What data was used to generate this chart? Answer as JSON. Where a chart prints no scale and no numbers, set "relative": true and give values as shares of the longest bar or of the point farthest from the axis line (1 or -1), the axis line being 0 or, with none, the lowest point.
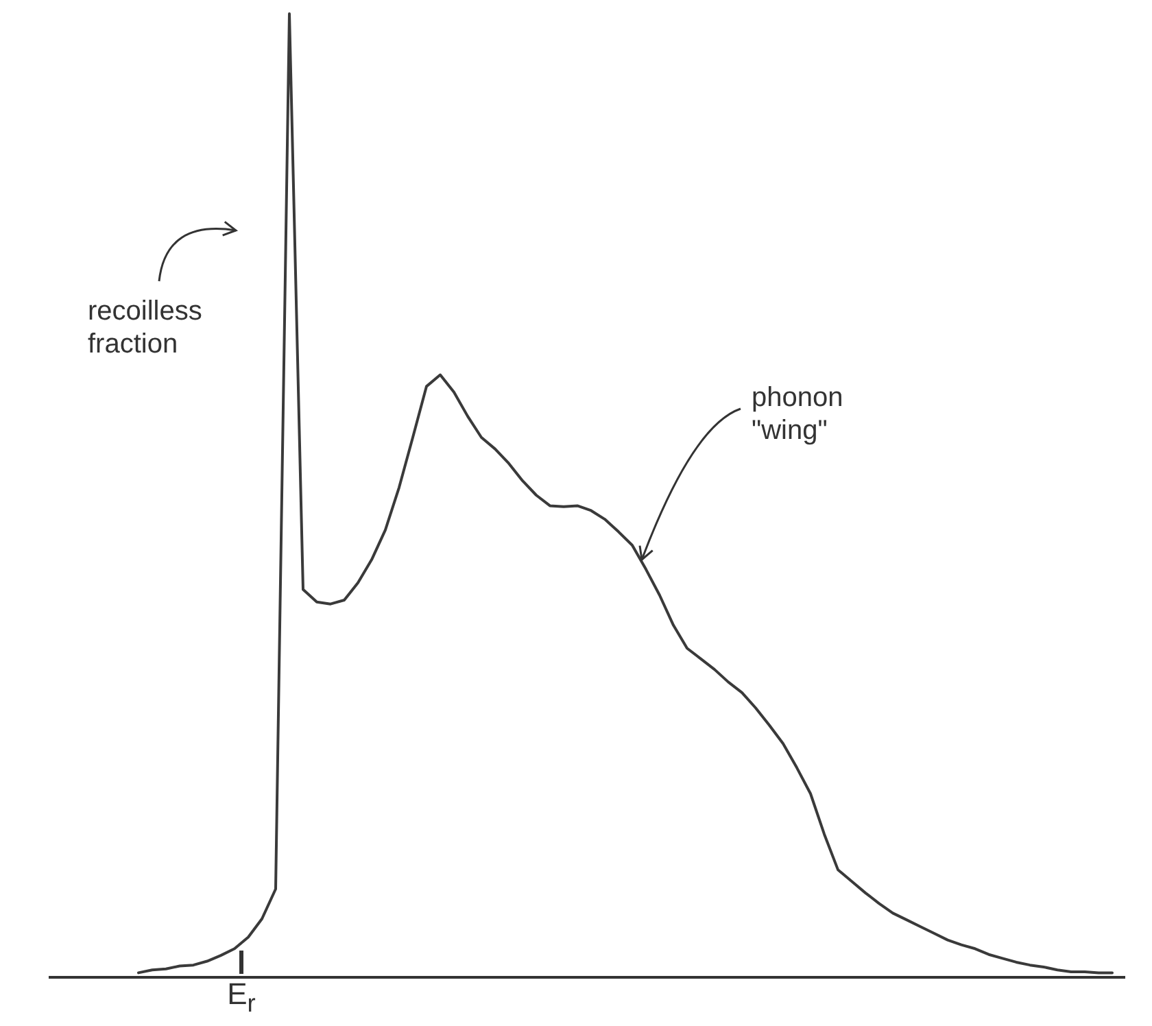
{
  "chart_data": {
    "type": "line",
    "relative": true,
    "categories": [
      null,
      null,
      null,
      null,
      null,
      null,
      null,
      null,
      null,
      null,
      null,
      null,
      null,
      null,
      null,
      null,
      null,
      null,
      null,
      null,
      null,
      null,
      null,
      null,
      null,
      null,
      null,
      null,
      null,
      null,
      null,
      null,
      null,
      null,
      null,
      null,
      null,
      null,
      null,
      null,
      null,
      null,
      null,
      null,
      null,
      null,
      null,
      null,
      null,
      null,
      null,
      null,
      null,
      null,
      null,
      null,
      null,
      null,
      null,
      null,
      null,
      null,
      null,
      null,
      null,
      null,
      null,
      null,
      null,
      null,
      null,
      null
    ],
    "series": [
      {
        "color": "#3a3a3a",
        "values": [
          0.004,
          0.007,
          0.008,
          0.011,
          0.012,
          0.016,
          0.022,
          0.029,
          0.041,
          0.06,
          0.091,
          1,
          0.402,
          0.389,
          0.387,
          0.391,
          0.409,
          0.433,
          0.464,
          0.508,
          0.56,
          0.613,
          0.625,
          0.607,
          0.582,
          0.56,
          0.548,
          0.533,
          0.515,
          0.5,
          0.489,
          0.488,
          0.489,
          0.484,
          0.475,
          0.462,
          0.448,
          0.423,
          0.396,
          0.365,
          0.341,
          0.33,
          0.319,
          0.306,
          0.295,
          0.279,
          0.261,
          0.242,
          0.217,
          0.19,
          0.148,
          0.111,
          0.099,
          0.087,
          0.076,
          0.066,
          0.059,
          0.052,
          0.045,
          0.038,
          0.033,
          0.029,
          0.023,
          0.019,
          0.015,
          0.012,
          0.01,
          0.007,
          0.005,
          0.005,
          0.004,
          0.004
        ]
      }
    ],
    "annotations": [
      "recoilless fraction",
      "phonon \"wing\"",
      "E$_{r}$"
    ]
  }
}
